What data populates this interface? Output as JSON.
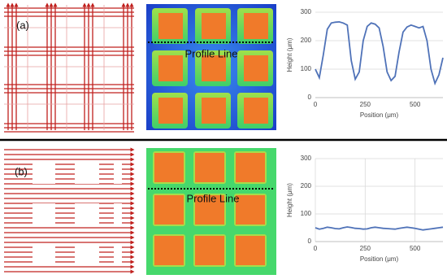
{
  "panels": [
    {
      "label": "(a)",
      "profile_label": "Profile Line"
    },
    {
      "label": "(b)",
      "profile_label": "Profile Line"
    }
  ],
  "chart_data": [
    {
      "type": "line",
      "xlabel": "Position (μm)",
      "ylabel": "Height (μm)",
      "x": [
        0,
        20,
        40,
        60,
        80,
        100,
        120,
        140,
        160,
        180,
        200,
        220,
        240,
        260,
        280,
        300,
        320,
        340,
        360,
        380,
        400,
        420,
        440,
        460,
        480,
        500,
        520,
        540,
        560,
        580,
        600,
        620,
        640
      ],
      "series": [
        {
          "color": "#4f72b8",
          "values": [
            100,
            70,
            150,
            240,
            262,
            265,
            266,
            262,
            255,
            130,
            65,
            90,
            200,
            250,
            262,
            258,
            245,
            180,
            90,
            60,
            75,
            160,
            230,
            248,
            255,
            250,
            245,
            250,
            200,
            100,
            50,
            80,
            140
          ]
        }
      ],
      "xlim": [
        0,
        640
      ],
      "ylim": [
        0,
        300
      ],
      "xticks": [
        0,
        250,
        500
      ],
      "yticks": [
        0,
        100,
        200,
        300
      ],
      "grid": true,
      "xgrid": false
    },
    {
      "type": "line",
      "xlabel": "Position (μm)",
      "ylabel": "Height (μm)",
      "x": [
        0,
        20,
        40,
        60,
        80,
        100,
        120,
        140,
        160,
        180,
        200,
        220,
        240,
        260,
        280,
        300,
        320,
        340,
        360,
        380,
        400,
        420,
        440,
        460,
        480,
        500,
        520,
        540,
        560,
        580,
        600,
        620,
        640
      ],
      "series": [
        {
          "color": "#4f72b8",
          "values": [
            50,
            45,
            48,
            52,
            50,
            47,
            46,
            50,
            53,
            51,
            48,
            47,
            45,
            46,
            50,
            52,
            50,
            48,
            47,
            46,
            45,
            48,
            50,
            52,
            50,
            48,
            45,
            42,
            44,
            46,
            48,
            50,
            52
          ]
        }
      ],
      "xlim": [
        0,
        640
      ],
      "ylim": [
        0,
        300
      ],
      "xticks": [
        0,
        250,
        500
      ],
      "yticks": [
        0,
        100,
        200,
        300
      ],
      "grid": true,
      "xgrid": true
    }
  ]
}
